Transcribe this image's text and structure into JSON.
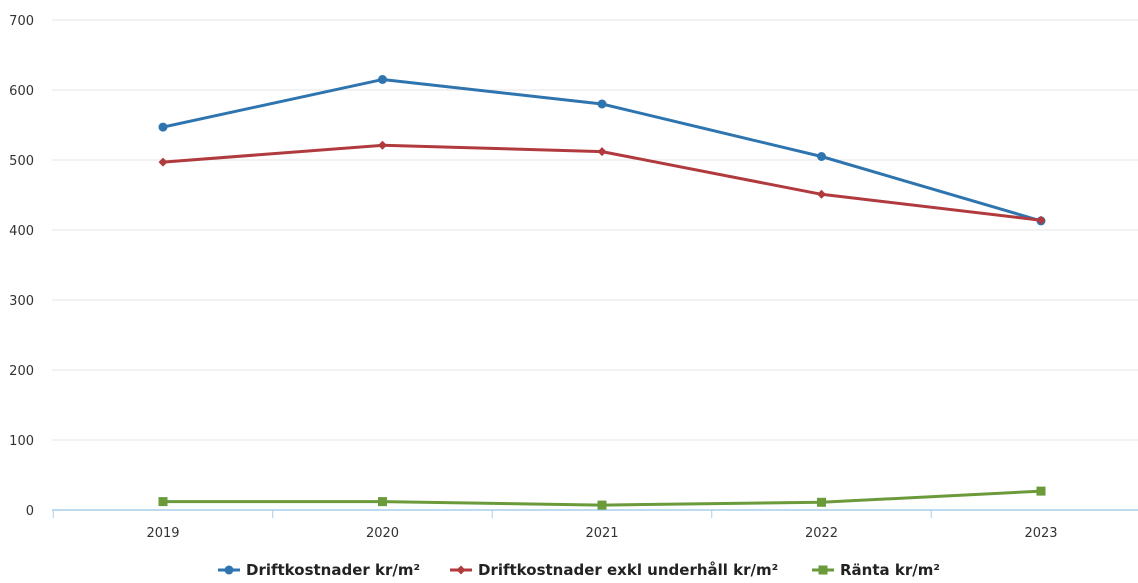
{
  "chart_data": {
    "type": "line",
    "title": "",
    "xlabel": "",
    "ylabel": "",
    "categories": [
      "2019",
      "2020",
      "2021",
      "2022",
      "2023"
    ],
    "ylim": [
      0,
      700
    ],
    "yticks": [
      0,
      100,
      200,
      300,
      400,
      500,
      600,
      700
    ],
    "grid": true,
    "legend_position": "bottom",
    "series": [
      {
        "name": "Driftkostnader kr/m²",
        "values": [
          547,
          615,
          580,
          505,
          413
        ],
        "color": "#2e75b0",
        "marker": "circle"
      },
      {
        "name": "Driftkostnader exkl underhåll kr/m²",
        "values": [
          497,
          521,
          512,
          451,
          414
        ],
        "color": "#b03a3e",
        "marker": "diamond"
      },
      {
        "name": "Ränta kr/m²",
        "values": [
          12,
          12,
          7,
          11,
          27
        ],
        "color": "#6a9a3a",
        "marker": "square"
      }
    ]
  }
}
